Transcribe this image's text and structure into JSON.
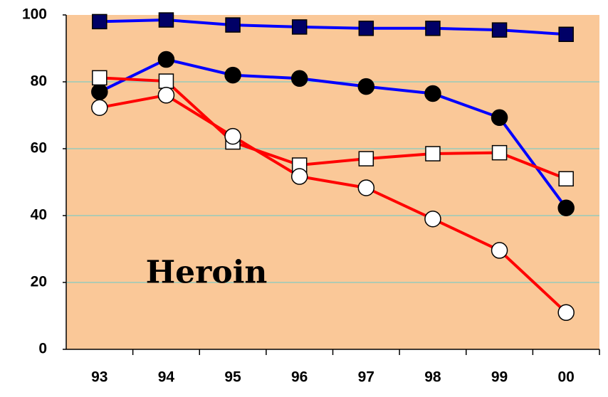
{
  "chart_data": {
    "type": "line",
    "categories": [
      "93",
      "94",
      "95",
      "96",
      "97",
      "98",
      "99",
      "00"
    ],
    "series": [
      {
        "color": "#0000ff",
        "marker": "square",
        "marker_fill": "#000066",
        "values": [
          98,
          98.5,
          97,
          96.4,
          96,
          96,
          95.5,
          94.2
        ]
      },
      {
        "color": "#0000ff",
        "marker": "circle",
        "marker_fill": "#000000",
        "values": [
          77,
          86.7,
          82,
          81,
          78.6,
          76.5,
          69.3,
          42.3
        ]
      },
      {
        "color": "#ff0000",
        "marker": "square",
        "marker_fill": "#ffffff",
        "values": [
          81.2,
          80.2,
          62,
          55.1,
          57,
          58.5,
          58.8,
          51
        ]
      },
      {
        "color": "#ff0000",
        "marker": "circle",
        "marker_fill": "#ffffff",
        "values": [
          72.3,
          76,
          63.7,
          51.7,
          48.3,
          39,
          29.6,
          11
        ]
      }
    ],
    "annotation": "Heroin",
    "ylim": [
      0,
      100
    ],
    "yticks": [
      0,
      20,
      40,
      60,
      80,
      100
    ],
    "grid": true,
    "background": "#fac898",
    "grid_color": "#66cccc"
  }
}
